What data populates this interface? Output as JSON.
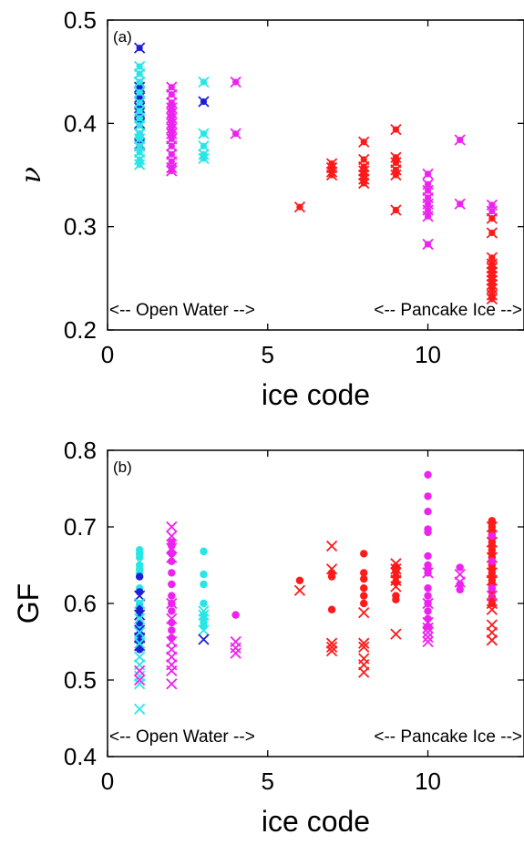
{
  "colors": {
    "blue": "#1f1fd6",
    "cyan": "#28e6e6",
    "magenta": "#ee22ee",
    "red": "#ff1a1a"
  },
  "chart_data": [
    {
      "type": "scatter",
      "panel_label": "(a)",
      "xlabel": "ice code",
      "ylabel": "ν",
      "xlim": [
        0,
        13
      ],
      "ylim": [
        0.2,
        0.5
      ],
      "xticks": [
        "0",
        "5",
        "10"
      ],
      "yticks": [
        "0.2",
        "0.3",
        "0.4",
        "0.5"
      ],
      "annotation_left": "<-- Open Water -->",
      "annotation_right": "<-- Pancake Ice -->",
      "marker": "x with dot",
      "series": [
        {
          "color": "blue",
          "x": 1,
          "y": [
            0.473,
            0.44,
            0.435,
            0.43,
            0.425,
            0.42,
            0.415,
            0.41,
            0.4,
            0.39,
            0.38,
            0.378
          ]
        },
        {
          "color": "cyan",
          "x": 1,
          "y": [
            0.455,
            0.448,
            0.44,
            0.43,
            0.42,
            0.412,
            0.405,
            0.398,
            0.39,
            0.385,
            0.378,
            0.372,
            0.365,
            0.36
          ]
        },
        {
          "color": "magenta",
          "x": 2,
          "y": [
            0.435,
            0.428,
            0.42,
            0.415,
            0.41,
            0.405,
            0.4,
            0.395,
            0.39,
            0.385,
            0.378,
            0.37,
            0.363,
            0.357,
            0.354
          ]
        },
        {
          "color": "cyan",
          "x": 3,
          "y": [
            0.44,
            0.39,
            0.378,
            0.37,
            0.366
          ]
        },
        {
          "color": "blue",
          "x": 3,
          "y": [
            0.421
          ]
        },
        {
          "color": "magenta",
          "x": 4,
          "y": [
            0.44,
            0.39
          ]
        },
        {
          "color": "red",
          "x": 6,
          "y": [
            0.319
          ]
        },
        {
          "color": "red",
          "x": 7,
          "y": [
            0.361,
            0.357,
            0.353,
            0.35
          ]
        },
        {
          "color": "red",
          "x": 8,
          "y": [
            0.382,
            0.365,
            0.358,
            0.354,
            0.35,
            0.346,
            0.342
          ]
        },
        {
          "color": "red",
          "x": 9,
          "y": [
            0.394,
            0.367,
            0.362,
            0.355,
            0.35,
            0.316
          ]
        },
        {
          "color": "magenta",
          "x": 10,
          "y": [
            0.351,
            0.341,
            0.335,
            0.328,
            0.322,
            0.316,
            0.31,
            0.283
          ]
        },
        {
          "color": "magenta",
          "x": 11,
          "y": [
            0.384,
            0.322
          ]
        },
        {
          "color": "magenta",
          "x": 12,
          "y": [
            0.321,
            0.315
          ]
        },
        {
          "color": "red",
          "x": 12,
          "y": [
            0.308,
            0.294,
            0.27,
            0.264,
            0.26,
            0.256,
            0.252,
            0.248,
            0.244,
            0.24,
            0.234,
            0.23
          ]
        }
      ]
    },
    {
      "type": "scatter",
      "panel_label": "(b)",
      "xlabel": "ice code",
      "ylabel": "GF",
      "xlim": [
        0,
        13
      ],
      "ylim": [
        0.4,
        0.8
      ],
      "xticks": [
        "0",
        "5",
        "10"
      ],
      "yticks": [
        "0.4",
        "0.5",
        "0.6",
        "0.7",
        "0.8"
      ],
      "annotation_left": "<-- Open Water -->",
      "annotation_right": "<-- Pancake Ice -->",
      "series": [
        {
          "color": "cyan",
          "marker": "dot",
          "x": 1,
          "y": [
            0.67,
            0.665,
            0.66,
            0.65,
            0.645,
            0.64,
            0.62,
            0.6,
            0.585,
            0.57,
            0.555
          ]
        },
        {
          "color": "blue",
          "marker": "dot",
          "x": 1,
          "y": [
            0.635,
            0.615,
            0.595,
            0.59,
            0.575,
            0.56,
            0.55,
            0.54
          ]
        },
        {
          "color": "blue",
          "marker": "cross",
          "x": 1,
          "y": [
            0.61,
            0.585,
            0.565,
            0.555,
            0.545
          ]
        },
        {
          "color": "cyan",
          "marker": "cross",
          "x": 1,
          "y": [
            0.6,
            0.58,
            0.562,
            0.548,
            0.53,
            0.52,
            0.505,
            0.495,
            0.462
          ]
        },
        {
          "color": "magenta",
          "marker": "cross",
          "x": 1,
          "y": [
            0.512,
            0.5
          ]
        },
        {
          "color": "magenta",
          "marker": "dot",
          "x": 2,
          "y": [
            0.68,
            0.675,
            0.665,
            0.655,
            0.64,
            0.625,
            0.61,
            0.6,
            0.59,
            0.575,
            0.565,
            0.555
          ]
        },
        {
          "color": "magenta",
          "marker": "cross",
          "x": 2,
          "y": [
            0.7,
            0.688,
            0.672,
            0.66,
            0.6,
            0.58,
            0.55,
            0.54,
            0.53,
            0.52,
            0.512,
            0.495
          ]
        },
        {
          "color": "cyan",
          "marker": "dot",
          "x": 3,
          "y": [
            0.668,
            0.638,
            0.625,
            0.6,
            0.585,
            0.58,
            0.575,
            0.57
          ]
        },
        {
          "color": "cyan",
          "marker": "cross",
          "x": 3,
          "y": [
            0.59,
            0.585,
            0.565
          ]
        },
        {
          "color": "blue",
          "marker": "cross",
          "x": 3,
          "y": [
            0.553
          ]
        },
        {
          "color": "magenta",
          "marker": "dot",
          "x": 4,
          "y": [
            0.585
          ]
        },
        {
          "color": "magenta",
          "marker": "cross",
          "x": 4,
          "y": [
            0.55,
            0.542,
            0.535
          ]
        },
        {
          "color": "red",
          "marker": "dot",
          "x": 6,
          "y": [
            0.63
          ]
        },
        {
          "color": "red",
          "marker": "cross",
          "x": 6,
          "y": [
            0.617
          ]
        },
        {
          "color": "red",
          "marker": "dot",
          "x": 7,
          "y": [
            0.64,
            0.635,
            0.592
          ]
        },
        {
          "color": "red",
          "marker": "cross",
          "x": 7,
          "y": [
            0.675,
            0.645,
            0.548,
            0.543,
            0.538
          ]
        },
        {
          "color": "red",
          "marker": "dot",
          "x": 8,
          "y": [
            0.665,
            0.64,
            0.632,
            0.62,
            0.61,
            0.6
          ]
        },
        {
          "color": "red",
          "marker": "cross",
          "x": 8,
          "y": [
            0.588,
            0.548,
            0.543,
            0.528,
            0.52,
            0.51
          ]
        },
        {
          "color": "red",
          "marker": "dot",
          "x": 9,
          "y": [
            0.648,
            0.642,
            0.635,
            0.628,
            0.61,
            0.605
          ]
        },
        {
          "color": "red",
          "marker": "cross",
          "x": 9,
          "y": [
            0.652,
            0.645,
            0.64,
            0.63,
            0.622,
            0.56
          ]
        },
        {
          "color": "magenta",
          "marker": "dot",
          "x": 10,
          "y": [
            0.768,
            0.74,
            0.72,
            0.697,
            0.693,
            0.662,
            0.65,
            0.645,
            0.64,
            0.62,
            0.61,
            0.6,
            0.59,
            0.58,
            0.57
          ]
        },
        {
          "color": "magenta",
          "marker": "cross",
          "x": 10,
          "y": [
            0.64,
            0.6,
            0.575,
            0.568,
            0.562,
            0.556,
            0.55
          ]
        },
        {
          "color": "magenta",
          "marker": "dot",
          "x": 11,
          "y": [
            0.647,
            0.625,
            0.618
          ]
        },
        {
          "color": "magenta",
          "marker": "cross",
          "x": 11,
          "y": [
            0.638,
            0.628
          ]
        },
        {
          "color": "red",
          "marker": "dot",
          "x": 12,
          "y": [
            0.708,
            0.705,
            0.7,
            0.695,
            0.69,
            0.685,
            0.68,
            0.675,
            0.67,
            0.665,
            0.66,
            0.655,
            0.65,
            0.645,
            0.64,
            0.635,
            0.63,
            0.625,
            0.62,
            0.615,
            0.608,
            0.6
          ]
        },
        {
          "color": "red",
          "marker": "cross",
          "x": 12,
          "y": [
            0.7,
            0.68,
            0.66,
            0.64,
            0.63,
            0.6,
            0.592,
            0.572,
            0.562,
            0.552
          ]
        },
        {
          "color": "magenta",
          "marker": "dot",
          "x": 12,
          "y": [
            0.688,
            0.655,
            0.62
          ]
        },
        {
          "color": "magenta",
          "marker": "cross",
          "x": 12,
          "y": [
            0.61
          ]
        }
      ]
    }
  ]
}
